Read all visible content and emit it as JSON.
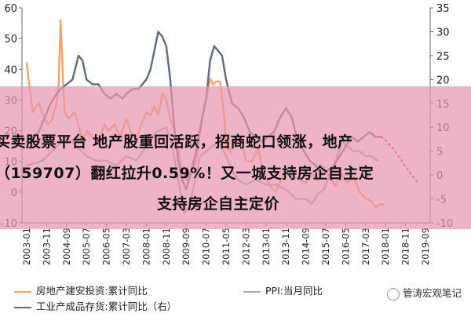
{
  "chart_data": {
    "type": "line",
    "x_ticks": [
      "2003-01",
      "2003-11",
      "2004-09",
      "2005-07",
      "2006-05",
      "2007-03",
      "2008-01",
      "2008-11",
      "2009-09",
      "2010-07",
      "2011-05",
      "2012-03",
      "2013-01",
      "2013-11",
      "2014-09",
      "2015-07",
      "2016-05",
      "2017-03",
      "2018-01",
      "2018-11",
      "2019-09"
    ],
    "y_left": {
      "ticks": [
        60,
        50,
        40,
        30,
        20,
        10,
        0,
        -10
      ],
      "ylim": [
        -10,
        60
      ]
    },
    "y_right": {
      "ticks": [
        35,
        30,
        25,
        20,
        15,
        10,
        5,
        0,
        -5,
        -10
      ],
      "ylim": [
        -10,
        35
      ]
    },
    "series": [
      {
        "name": "房地产建安投资:累计同比",
        "axis": "left",
        "color": "#f0a36b",
        "points": [
          [
            0,
            42
          ],
          [
            0.3,
            26
          ],
          [
            0.6,
            29
          ],
          [
            0.9,
            24
          ],
          [
            1.1,
            22
          ],
          [
            1.3,
            24
          ],
          [
            1.5,
            29
          ],
          [
            1.6,
            34
          ],
          [
            1.7,
            56
          ],
          [
            1.8,
            40
          ],
          [
            1.9,
            26
          ],
          [
            2.1,
            24
          ],
          [
            2.4,
            26
          ],
          [
            2.6,
            22
          ],
          [
            2.8,
            16
          ],
          [
            3.0,
            20
          ],
          [
            3.3,
            18
          ],
          [
            3.6,
            16
          ],
          [
            3.9,
            22
          ],
          [
            4.1,
            20
          ],
          [
            4.4,
            22
          ],
          [
            4.7,
            18
          ],
          [
            5.0,
            24
          ],
          [
            5.2,
            20
          ],
          [
            5.5,
            17
          ],
          [
            5.8,
            23
          ],
          [
            6.0,
            26
          ],
          [
            6.2,
            25
          ],
          [
            6.4,
            28
          ],
          [
            6.6,
            25
          ],
          [
            6.8,
            32
          ],
          [
            7.0,
            30
          ],
          [
            7.2,
            24
          ],
          [
            7.4,
            20
          ],
          [
            7.6,
            14
          ],
          [
            7.8,
            7
          ],
          [
            8.0,
            4
          ],
          [
            8.2,
            6
          ],
          [
            8.5,
            10
          ],
          [
            8.8,
            24
          ],
          [
            9.0,
            30
          ],
          [
            9.2,
            37
          ],
          [
            9.35,
            35
          ],
          [
            9.5,
            36
          ],
          [
            9.7,
            36
          ],
          [
            9.9,
            25
          ],
          [
            10.0,
            15
          ],
          [
            10.2,
            13
          ],
          [
            10.5,
            18
          ],
          [
            10.8,
            16
          ],
          [
            11.0,
            10
          ],
          [
            11.3,
            10
          ],
          [
            11.6,
            14
          ],
          [
            11.9,
            6
          ],
          [
            12.2,
            2
          ],
          [
            12.5,
            0
          ],
          [
            12.8,
            5
          ],
          [
            13.1,
            6
          ],
          [
            13.4,
            5
          ],
          [
            13.7,
            4
          ],
          [
            14.0,
            3
          ],
          [
            14.3,
            6
          ],
          [
            14.6,
            4
          ],
          [
            14.9,
            8
          ],
          [
            15.2,
            5
          ],
          [
            15.5,
            2
          ],
          [
            15.8,
            6
          ],
          [
            16.1,
            3
          ],
          [
            16.4,
            5
          ],
          [
            16.7,
            0
          ],
          [
            17.0,
            -2
          ],
          [
            17.3,
            -3
          ],
          [
            17.5,
            -5
          ],
          [
            17.7,
            -4
          ],
          [
            17.9,
            -4
          ]
        ]
      },
      {
        "name": "PPI:当月同比",
        "axis": "right",
        "color": "#a8a8a8",
        "points": [
          [
            0,
            2
          ],
          [
            0.8,
            3
          ],
          [
            1.5,
            6
          ],
          [
            2.0,
            8
          ],
          [
            2.5,
            6
          ],
          [
            3.0,
            4
          ],
          [
            3.5,
            3
          ],
          [
            4.0,
            3
          ],
          [
            4.5,
            2
          ],
          [
            5.0,
            4
          ],
          [
            5.5,
            3
          ],
          [
            6.0,
            6
          ],
          [
            6.5,
            9
          ],
          [
            7.0,
            10
          ],
          [
            7.3,
            6
          ],
          [
            7.6,
            -1
          ],
          [
            7.9,
            -8
          ],
          [
            8.1,
            -7
          ],
          [
            8.4,
            -2
          ],
          [
            8.7,
            4
          ],
          [
            9.0,
            5
          ],
          [
            9.3,
            6
          ],
          [
            9.6,
            7
          ],
          [
            10.0,
            4
          ],
          [
            10.3,
            1
          ],
          [
            10.6,
            -1
          ],
          [
            11.0,
            -2
          ],
          [
            11.5,
            -1
          ],
          [
            12.0,
            -2
          ],
          [
            12.5,
            -2
          ],
          [
            13.0,
            -3
          ],
          [
            13.5,
            -5
          ],
          [
            14.0,
            -5
          ],
          [
            14.3,
            -6
          ],
          [
            14.6,
            -4
          ],
          [
            14.9,
            -3
          ],
          [
            15.2,
            0
          ],
          [
            15.5,
            3
          ],
          [
            15.8,
            7
          ],
          [
            16.1,
            6
          ],
          [
            16.4,
            5
          ],
          [
            16.7,
            5
          ],
          [
            17.0,
            4
          ],
          [
            17.3,
            4
          ],
          [
            17.6,
            3
          ]
        ]
      },
      {
        "name": "工业产成品存货:累计同比（右）",
        "axis": "right",
        "color": "#606a7c",
        "points": [
          [
            0,
            7
          ],
          [
            0.3,
            8
          ],
          [
            0.6,
            9
          ],
          [
            0.9,
            12
          ],
          [
            1.2,
            15
          ],
          [
            1.5,
            17
          ],
          [
            1.7,
            18
          ],
          [
            2.0,
            19
          ],
          [
            2.3,
            20
          ],
          [
            2.6,
            25
          ],
          [
            2.8,
            24
          ],
          [
            3.0,
            20
          ],
          [
            3.3,
            19
          ],
          [
            3.6,
            19
          ],
          [
            3.9,
            17
          ],
          [
            4.2,
            16
          ],
          [
            4.5,
            17
          ],
          [
            4.8,
            16
          ],
          [
            5.0,
            17
          ],
          [
            5.3,
            18
          ],
          [
            5.6,
            18
          ],
          [
            5.8,
            19
          ],
          [
            6.0,
            20
          ],
          [
            6.2,
            22
          ],
          [
            6.4,
            26
          ],
          [
            6.6,
            30
          ],
          [
            6.8,
            29
          ],
          [
            7.0,
            27
          ],
          [
            7.2,
            20
          ],
          [
            7.4,
            10
          ],
          [
            7.6,
            3
          ],
          [
            7.8,
            -1
          ],
          [
            8.0,
            -3
          ],
          [
            8.2,
            0
          ],
          [
            8.5,
            5
          ],
          [
            8.8,
            12
          ],
          [
            9.0,
            16
          ],
          [
            9.2,
            24
          ],
          [
            9.4,
            27
          ],
          [
            9.6,
            26
          ],
          [
            9.8,
            25
          ],
          [
            10.0,
            20
          ],
          [
            10.3,
            15
          ],
          [
            10.6,
            14
          ],
          [
            10.9,
            12
          ],
          [
            11.2,
            9
          ],
          [
            11.5,
            8
          ],
          [
            11.8,
            7
          ],
          [
            12.1,
            8
          ],
          [
            12.4,
            9
          ],
          [
            12.7,
            12
          ],
          [
            13.0,
            14
          ],
          [
            13.3,
            12
          ],
          [
            13.6,
            7
          ],
          [
            13.9,
            5
          ],
          [
            14.2,
            3
          ],
          [
            14.5,
            2
          ],
          [
            14.8,
            0
          ],
          [
            15.1,
            1
          ],
          [
            15.4,
            2
          ],
          [
            15.7,
            4
          ],
          [
            16.0,
            6
          ],
          [
            16.3,
            8
          ],
          [
            16.6,
            7
          ],
          [
            16.9,
            8
          ],
          [
            17.2,
            9
          ],
          [
            17.5,
            8
          ],
          [
            17.8,
            8
          ]
        ]
      },
      {
        "name": "forecast",
        "axis": "right",
        "color": "#e03a3a",
        "dotted": true,
        "points": [
          [
            17.8,
            8
          ],
          [
            18.3,
            6
          ],
          [
            18.8,
            3
          ],
          [
            19.3,
            0
          ],
          [
            19.7,
            -2
          ]
        ]
      }
    ],
    "legend": {
      "placement": "bottom",
      "entries": [
        {
          "label": "房地产建安投资:累计同比",
          "color": "#f0a36b",
          "style": "solid"
        },
        {
          "label": "PPI:当月同比",
          "color": "#a8a8a8",
          "style": "solid"
        },
        {
          "label": "工业产成品存货:累计同比（右）",
          "color": "#606a7c",
          "style": "solid"
        }
      ]
    }
  },
  "banner": {
    "line1": "买卖股票平台 地产股重回活跃，招商蛇口领涨，地产",
    "line2": "（159707）翻红拉升0.59%！又一城支持房企自主定",
    "line3": "支持房企自主定价"
  },
  "watermark": {
    "text": "管涛宏观笔记"
  }
}
